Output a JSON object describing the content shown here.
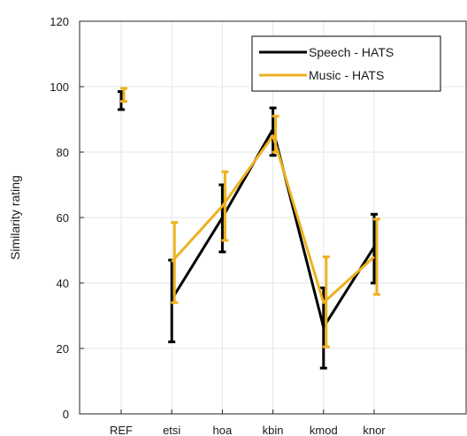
{
  "chart_data": {
    "type": "line",
    "categories": [
      "REF",
      "etsi",
      "hoa",
      "kbin",
      "kmod",
      "knor"
    ],
    "ylabel": "Similarity rating",
    "xlabel": "",
    "ylim": [
      0,
      120
    ],
    "yticks": [
      0,
      20,
      40,
      60,
      80,
      100,
      120
    ],
    "grid": true,
    "legend_position": "top-right",
    "series": [
      {
        "name": "Speech - HATS",
        "color": "#000000",
        "values": [
          95.5,
          35,
          60,
          87,
          26.5,
          51
        ],
        "err_low": [
          93,
          22,
          49.5,
          79,
          14,
          40
        ],
        "err_high": [
          98.5,
          47,
          70,
          93.5,
          38.5,
          61
        ],
        "connected": [
          false,
          true,
          true,
          true,
          true,
          true
        ]
      },
      {
        "name": "Music - HATS",
        "color": "#edb120",
        "values": [
          97.5,
          46.5,
          63.5,
          85,
          34,
          48
        ],
        "err_low": [
          95.5,
          34,
          53,
          80,
          20.5,
          36.5
        ],
        "err_high": [
          99.5,
          58.5,
          74,
          91,
          48,
          59.5
        ],
        "connected": [
          false,
          true,
          true,
          true,
          true,
          true
        ]
      }
    ]
  }
}
